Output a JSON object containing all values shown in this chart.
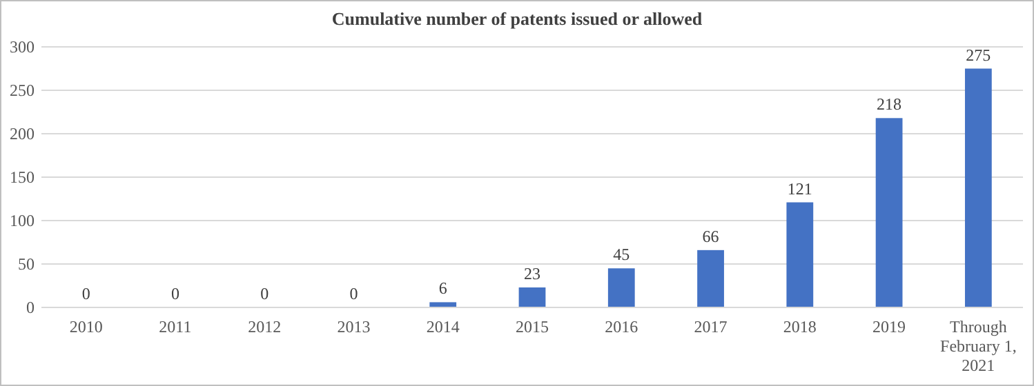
{
  "chart_data": {
    "type": "bar",
    "title": "Cumulative number of patents issued or allowed",
    "categories": [
      "2010",
      "2011",
      "2012",
      "2013",
      "2014",
      "2015",
      "2016",
      "2017",
      "2018",
      "2019",
      "Through February 1, 2021"
    ],
    "values": [
      0,
      0,
      0,
      0,
      6,
      23,
      45,
      66,
      121,
      218,
      275
    ],
    "color": "#4472c4",
    "ylim": [
      0,
      300
    ],
    "yticks": [
      0,
      50,
      100,
      150,
      200,
      250,
      300
    ],
    "grid": "y",
    "data_labels": true
  }
}
